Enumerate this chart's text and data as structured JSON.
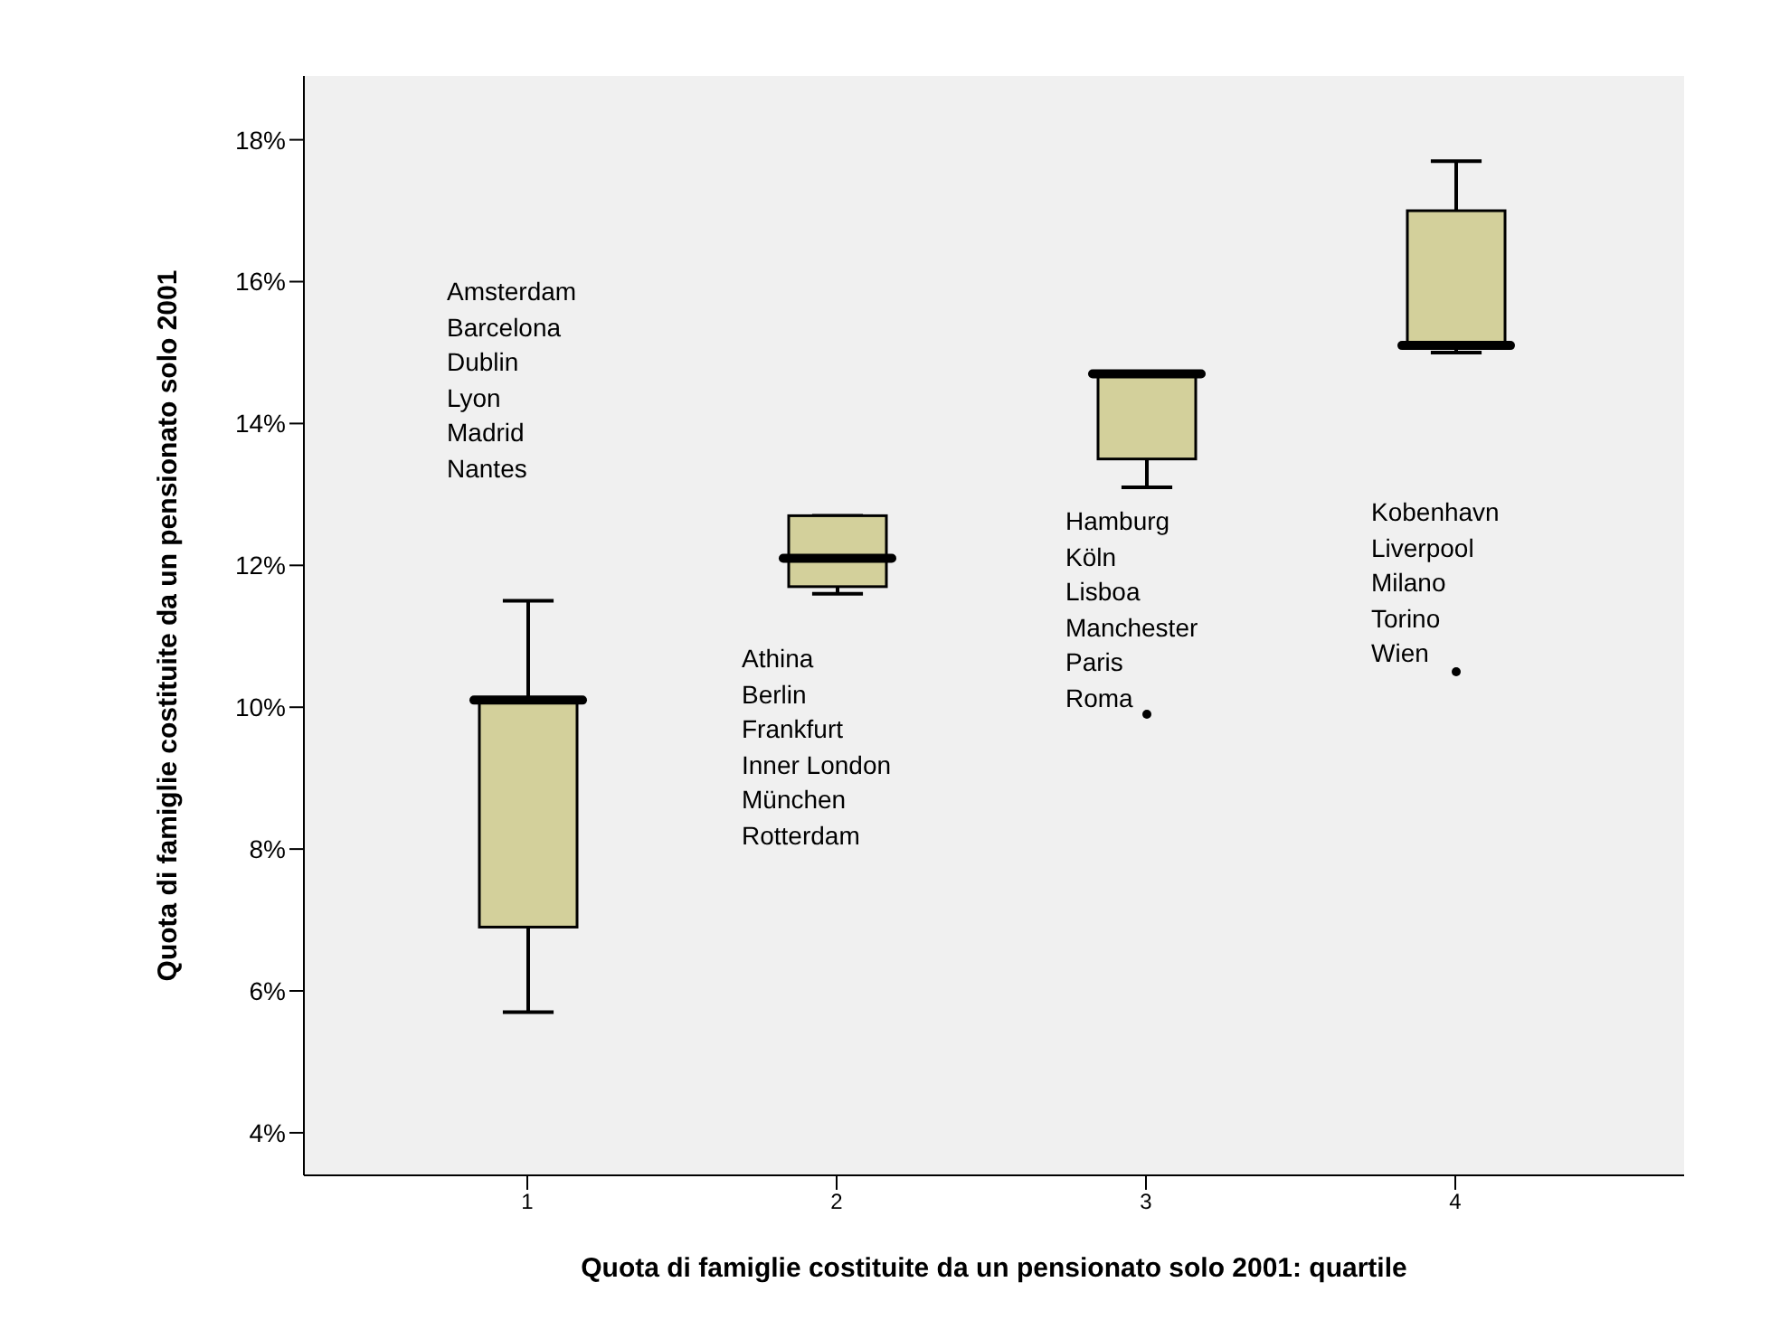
{
  "chart_data": {
    "type": "box",
    "xlabel": "Quota di famiglie costituite da un pensionato solo 2001: quartile",
    "ylabel": "Quota di famiglie costituite da un pensionato solo 2001",
    "categories": [
      "1",
      "2",
      "3",
      "4"
    ],
    "color": "#d3d09b",
    "boxes": [
      {
        "low": 5.7,
        "q1": 6.9,
        "median": 10.1,
        "q3": 10.1,
        "high": 11.5
      },
      {
        "low": 11.6,
        "q1": 11.7,
        "median": 12.1,
        "q3": 12.7,
        "high": 12.7
      },
      {
        "low": 13.1,
        "q1": 13.5,
        "median": 14.7,
        "q3": 14.7,
        "high": 14.7,
        "outliers": [
          9.9
        ]
      },
      {
        "low": 15.0,
        "q1": 15.1,
        "median": 15.1,
        "q3": 17.0,
        "high": 17.7,
        "outliers": [
          10.5
        ]
      }
    ],
    "ylim": [
      3.4,
      18.9
    ],
    "yticks": [
      {
        "value": 4,
        "label": "4%"
      },
      {
        "value": 6,
        "label": "6%"
      },
      {
        "value": 8,
        "label": "8%"
      },
      {
        "value": 10,
        "label": "10%"
      },
      {
        "value": 12,
        "label": "12%"
      },
      {
        "value": 14,
        "label": "14%"
      },
      {
        "value": 16,
        "label": "16%"
      },
      {
        "value": 18,
        "label": "18%"
      }
    ],
    "grid": false,
    "annotations": [
      "Amsterdam\nBarcelona\nDublin\nLyon\nMadrid\nNantes",
      "Athina\nBerlin\nFrankfurt\nInner London\nMünchen\nRotterdam",
      "Hamburg\nKöln\nLisboa\nManchester\nParis\nRoma",
      "Kobenhavn\nLiverpool\nMilano\nTorino\nWien"
    ]
  }
}
